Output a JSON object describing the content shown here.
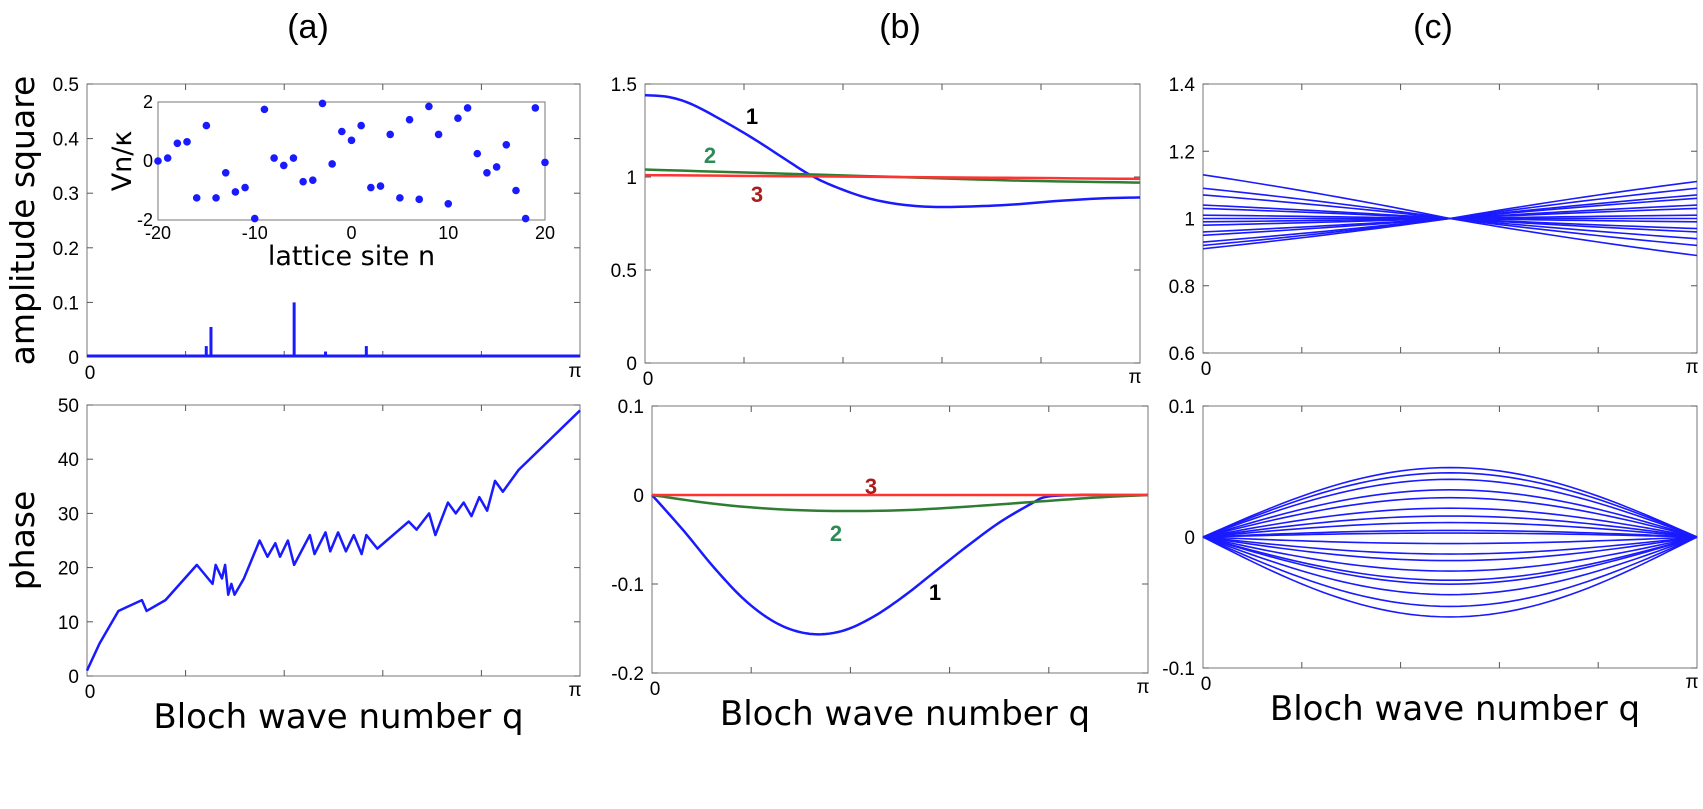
{
  "chart_data": [
    {
      "id": "a-top",
      "panel_label": "(a)",
      "type": "line",
      "ylabel": "amplitude square",
      "xlabel": "",
      "xlim": [
        0,
        3.14159
      ],
      "ylim": [
        0,
        0.5
      ],
      "x_tick_labels": [
        "0",
        "π"
      ],
      "y_ticks": [
        0,
        0.1,
        0.2,
        0.3,
        0.4,
        0.5
      ],
      "y_tick_labels": [
        "0",
        "0.1",
        "0.2",
        "0.3",
        "0.4",
        "0.5"
      ],
      "series": [
        {
          "name": "amplitude",
          "color": "#1a1aff",
          "spikes": [
            [
              0.76,
              0.02
            ],
            [
              0.79,
              0.055
            ],
            [
              1.32,
              0.1
            ],
            [
              1.52,
              0.01
            ],
            [
              1.78,
              0.02
            ]
          ]
        }
      ],
      "inset": {
        "type": "scatter",
        "xlabel": "lattice site n",
        "ylabel": "Vn/κ",
        "xlim": [
          -20,
          20
        ],
        "ylim": [
          -2,
          2
        ],
        "x_tick_labels": [
          "-20",
          "-10",
          "0",
          "10",
          "20"
        ],
        "y_tick_labels": [
          "-2",
          "0",
          "2"
        ],
        "color": "#1a1aff",
        "points": [
          [
            -20,
            0.0
          ],
          [
            -19,
            0.1
          ],
          [
            -18,
            0.6
          ],
          [
            -17,
            0.65
          ],
          [
            -16,
            -1.25
          ],
          [
            -15,
            1.2
          ],
          [
            -14,
            -1.25
          ],
          [
            -13,
            -0.4
          ],
          [
            -12,
            -1.05
          ],
          [
            -11,
            -0.9
          ],
          [
            -10,
            -1.95
          ],
          [
            -9,
            1.75
          ],
          [
            -8,
            0.1
          ],
          [
            -7,
            -0.15
          ],
          [
            -6,
            0.1
          ],
          [
            -5,
            -0.7
          ],
          [
            -4,
            -0.65
          ],
          [
            -3,
            1.95
          ],
          [
            -2,
            -0.1
          ],
          [
            -1,
            1.0
          ],
          [
            0,
            0.7
          ],
          [
            1,
            1.2
          ],
          [
            2,
            -0.9
          ],
          [
            3,
            -0.85
          ],
          [
            4,
            0.9
          ],
          [
            5,
            -1.25
          ],
          [
            6,
            1.4
          ],
          [
            7,
            -1.3
          ],
          [
            8,
            1.85
          ],
          [
            9,
            0.9
          ],
          [
            10,
            -1.45
          ],
          [
            11,
            1.45
          ],
          [
            12,
            1.8
          ],
          [
            13,
            0.25
          ],
          [
            14,
            -0.4
          ],
          [
            15,
            -0.2
          ],
          [
            16,
            0.55
          ],
          [
            17,
            -1.0
          ],
          [
            18,
            -1.95
          ],
          [
            19,
            1.8
          ],
          [
            20,
            -0.05
          ]
        ]
      }
    },
    {
      "id": "a-bottom",
      "type": "line",
      "ylabel": "phase",
      "xlabel": "Bloch wave number q",
      "xlim": [
        0,
        3.14159
      ],
      "ylim": [
        0,
        50
      ],
      "x_tick_labels": [
        "0",
        "π"
      ],
      "y_ticks": [
        0,
        10,
        20,
        30,
        40,
        50
      ],
      "y_tick_labels": [
        "0",
        "10",
        "20",
        "30",
        "40",
        "50"
      ],
      "series": [
        {
          "name": "phase",
          "color": "#1a1aff",
          "x": [
            0,
            0.08,
            0.2,
            0.35,
            0.38,
            0.5,
            0.7,
            0.8,
            0.82,
            0.86,
            0.88,
            0.9,
            0.92,
            0.94,
            1.0,
            1.1,
            1.15,
            1.2,
            1.23,
            1.28,
            1.32,
            1.42,
            1.45,
            1.52,
            1.55,
            1.6,
            1.65,
            1.7,
            1.75,
            1.78,
            1.85,
            2.05,
            2.1,
            2.18,
            2.22,
            2.3,
            2.35,
            2.4,
            2.45,
            2.5,
            2.55,
            2.6,
            2.65,
            2.75,
            3.14159
          ],
          "y": [
            1,
            6,
            12,
            14,
            12,
            14,
            20.5,
            17,
            20.5,
            18,
            20.5,
            15,
            17,
            15,
            18,
            25,
            22,
            24.5,
            22,
            25,
            20.5,
            26,
            22.5,
            26.5,
            23,
            26.5,
            23,
            26,
            22.5,
            26,
            23.5,
            28.5,
            27,
            30,
            26,
            32,
            30,
            32,
            29.5,
            33,
            30.5,
            36,
            34,
            38,
            49
          ]
        }
      ]
    },
    {
      "id": "b-top",
      "panel_label": "(b)",
      "type": "line",
      "xlim": [
        0,
        3.14159
      ],
      "ylim": [
        0,
        1.5
      ],
      "x_tick_labels": [
        "0",
        "π"
      ],
      "y_ticks": [
        0,
        0.5,
        1,
        1.5
      ],
      "y_tick_labels": [
        "0",
        "0.5",
        "1",
        "1.5"
      ],
      "series": [
        {
          "name": "1",
          "color": "#1a1aff",
          "x": [
            0,
            0.15,
            0.3,
            0.5,
            0.7,
            0.9,
            1.05,
            1.2,
            1.4,
            1.6,
            1.8,
            2.0,
            2.3,
            2.6,
            2.9,
            3.14159
          ],
          "y": [
            1.44,
            1.43,
            1.39,
            1.3,
            1.2,
            1.09,
            1.01,
            0.95,
            0.89,
            0.855,
            0.84,
            0.84,
            0.85,
            0.87,
            0.885,
            0.89
          ]
        },
        {
          "name": "2",
          "color": "#2e7d32",
          "x": [
            0,
            0.8,
            1.6,
            2.4,
            3.14159
          ],
          "y": [
            1.04,
            1.02,
            1.0,
            0.98,
            0.97
          ]
        },
        {
          "name": "3",
          "color": "#ff3333",
          "x": [
            0,
            0.8,
            1.6,
            2.4,
            3.14159
          ],
          "y": [
            1.01,
            1.005,
            1.0,
            0.995,
            0.99
          ]
        }
      ],
      "annotations": [
        {
          "text": "1",
          "color": "#000000"
        },
        {
          "text": "2",
          "color": "#2e8b57"
        },
        {
          "text": "3",
          "color": "#aa1c1c"
        }
      ]
    },
    {
      "id": "b-bottom",
      "type": "line",
      "xlabel": "Bloch wave number q",
      "xlim": [
        0,
        3.14159
      ],
      "ylim": [
        -0.2,
        0.1
      ],
      "x_tick_labels": [
        "0",
        "π"
      ],
      "y_ticks": [
        -0.2,
        -0.1,
        0,
        0.1
      ],
      "y_tick_labels": [
        "-0.2",
        "-0.1",
        "0",
        "0.1"
      ],
      "series": [
        {
          "name": "1",
          "color": "#1a1aff",
          "x": [
            0,
            0.2,
            0.4,
            0.6,
            0.8,
            1.0,
            1.2,
            1.4,
            1.6,
            1.8,
            2.0,
            2.2,
            2.4,
            2.5,
            2.7,
            2.9,
            3.14159
          ],
          "y": [
            0,
            -0.04,
            -0.083,
            -0.12,
            -0.145,
            -0.156,
            -0.153,
            -0.137,
            -0.113,
            -0.085,
            -0.057,
            -0.031,
            -0.01,
            -0.002,
            0,
            0,
            0
          ]
        },
        {
          "name": "2",
          "color": "#2e7d32",
          "x": [
            0,
            0.4,
            0.8,
            1.2,
            1.6,
            2.0,
            2.4,
            2.8,
            3.14159
          ],
          "y": [
            0,
            -0.01,
            -0.016,
            -0.018,
            -0.017,
            -0.013,
            -0.008,
            -0.003,
            0
          ]
        },
        {
          "name": "3",
          "color": "#ff3333",
          "x": [
            0,
            3.14159
          ],
          "y": [
            0,
            0
          ]
        }
      ],
      "annotations": [
        {
          "text": "3",
          "color": "#aa1c1c"
        },
        {
          "text": "2",
          "color": "#2e8b57"
        },
        {
          "text": "1",
          "color": "#000000"
        }
      ]
    },
    {
      "id": "c-top",
      "panel_label": "(c)",
      "type": "line",
      "xlim": [
        0,
        3.14159
      ],
      "ylim": [
        0.6,
        1.4
      ],
      "x_tick_labels": [
        "0",
        "π"
      ],
      "y_ticks": [
        0.6,
        0.8,
        1,
        1.2,
        1.4
      ],
      "y_tick_labels": [
        "0.6",
        "0.8",
        "1",
        "1.2",
        "1.4"
      ],
      "color": "#1a1aff",
      "family": "amplitude",
      "left_values": [
        1.13,
        1.09,
        1.07,
        1.04,
        1.03,
        1.01,
        1.0,
        0.99,
        0.98,
        0.96,
        0.95,
        0.93,
        0.92,
        0.91
      ],
      "right_values": [
        0.89,
        0.92,
        0.94,
        0.96,
        0.97,
        0.99,
        1.0,
        1.01,
        1.03,
        1.04,
        1.06,
        1.07,
        1.09,
        1.11
      ]
    },
    {
      "id": "c-bottom",
      "type": "line",
      "xlabel": "Bloch wave number q",
      "xlim": [
        0,
        3.14159
      ],
      "ylim": [
        -0.1,
        0.1
      ],
      "x_tick_labels": [
        "0",
        "π"
      ],
      "y_ticks": [
        -0.1,
        0,
        0.1
      ],
      "y_tick_labels": [
        "-0.1",
        "0",
        "0.1"
      ],
      "color": "#1a1aff",
      "family": "phase",
      "amplitudes": [
        0.053,
        0.049,
        0.044,
        0.036,
        0.03,
        0.022,
        0.016,
        0.011,
        0.005,
        0.003,
        -0.005,
        -0.013,
        -0.018,
        -0.026,
        -0.033,
        -0.036,
        -0.044,
        -0.053,
        -0.061
      ]
    }
  ]
}
